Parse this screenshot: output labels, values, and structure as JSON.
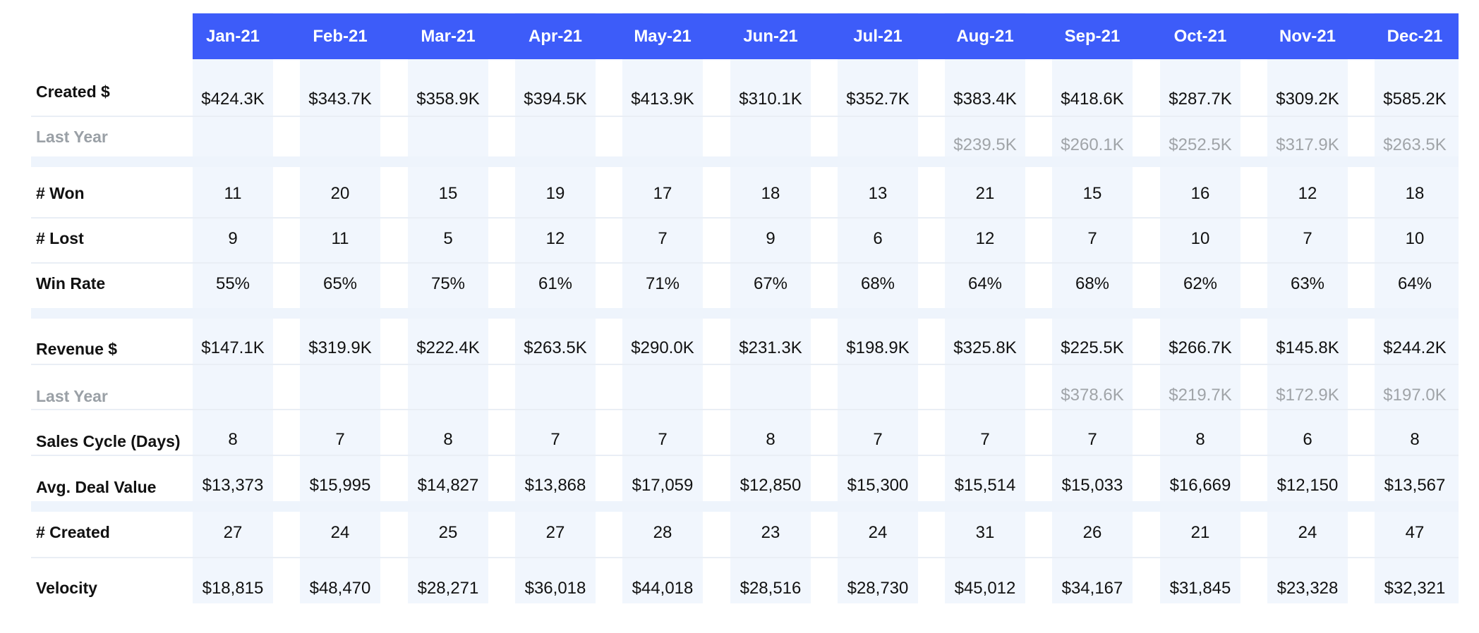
{
  "months": [
    "Jan-21",
    "Feb-21",
    "Mar-21",
    "Apr-21",
    "May-21",
    "Jun-21",
    "Jul-21",
    "Aug-21",
    "Sep-21",
    "Oct-21",
    "Nov-21",
    "Dec-21"
  ],
  "rows": [
    {
      "key": "created",
      "label": "Created $",
      "muted": false,
      "values": [
        "$424.3K",
        "$343.7K",
        "$358.9K",
        "$394.5K",
        "$413.9K",
        "$310.1K",
        "$352.7K",
        "$383.4K",
        "$418.6K",
        "$287.7K",
        "$309.2K",
        "$585.2K"
      ]
    },
    {
      "key": "created-last-year",
      "label": "Last Year",
      "muted": true,
      "values": [
        "",
        "",
        "",
        "",
        "",
        "",
        "",
        "$239.5K",
        "$260.1K",
        "$252.5K",
        "$317.9K",
        "$263.5K"
      ]
    },
    {
      "key": "won",
      "label": "# Won",
      "muted": false,
      "values": [
        "11",
        "20",
        "15",
        "19",
        "17",
        "18",
        "13",
        "21",
        "15",
        "16",
        "12",
        "18"
      ]
    },
    {
      "key": "lost",
      "label": "# Lost",
      "muted": false,
      "values": [
        "9",
        "11",
        "5",
        "12",
        "7",
        "9",
        "6",
        "12",
        "7",
        "10",
        "7",
        "10"
      ]
    },
    {
      "key": "win-rate",
      "label": "Win Rate",
      "muted": false,
      "values": [
        "55%",
        "65%",
        "75%",
        "61%",
        "71%",
        "67%",
        "68%",
        "64%",
        "68%",
        "62%",
        "63%",
        "64%"
      ]
    },
    {
      "key": "revenue",
      "label": "Revenue $",
      "muted": false,
      "values": [
        "$147.1K",
        "$319.9K",
        "$222.4K",
        "$263.5K",
        "$290.0K",
        "$231.3K",
        "$198.9K",
        "$325.8K",
        "$225.5K",
        "$266.7K",
        "$145.8K",
        "$244.2K"
      ]
    },
    {
      "key": "revenue-last-year",
      "label": "Last Year",
      "muted": true,
      "values": [
        "",
        "",
        "",
        "",
        "",
        "",
        "",
        "",
        "$378.6K",
        "$219.7K",
        "$172.9K",
        "$197.0K"
      ]
    },
    {
      "key": "sales-cycle",
      "label": "Sales Cycle (Days)",
      "muted": false,
      "values": [
        "8",
        "7",
        "8",
        "7",
        "7",
        "8",
        "7",
        "7",
        "7",
        "8",
        "6",
        "8"
      ]
    },
    {
      "key": "avg-deal-value",
      "label": "Avg. Deal Value",
      "muted": false,
      "values": [
        "$13,373",
        "$15,995",
        "$14,827",
        "$13,868",
        "$17,059",
        "$12,850",
        "$15,300",
        "$15,514",
        "$15,033",
        "$16,669",
        "$12,150",
        "$13,567"
      ]
    },
    {
      "key": "num-created",
      "label": "# Created",
      "muted": false,
      "values": [
        "27",
        "24",
        "25",
        "27",
        "28",
        "23",
        "24",
        "31",
        "26",
        "21",
        "24",
        "47"
      ]
    },
    {
      "key": "velocity",
      "label": "Velocity",
      "muted": false,
      "values": [
        "$18,815",
        "$48,470",
        "$28,271",
        "$36,018",
        "$44,018",
        "$28,516",
        "$28,730",
        "$45,012",
        "$34,167",
        "$31,845",
        "$23,328",
        "$32,321"
      ]
    }
  ],
  "colors": {
    "header": "#3d5cf9",
    "stripe": "#f1f6fd",
    "muted_text": "#a0a4a8",
    "text": "#111111"
  }
}
